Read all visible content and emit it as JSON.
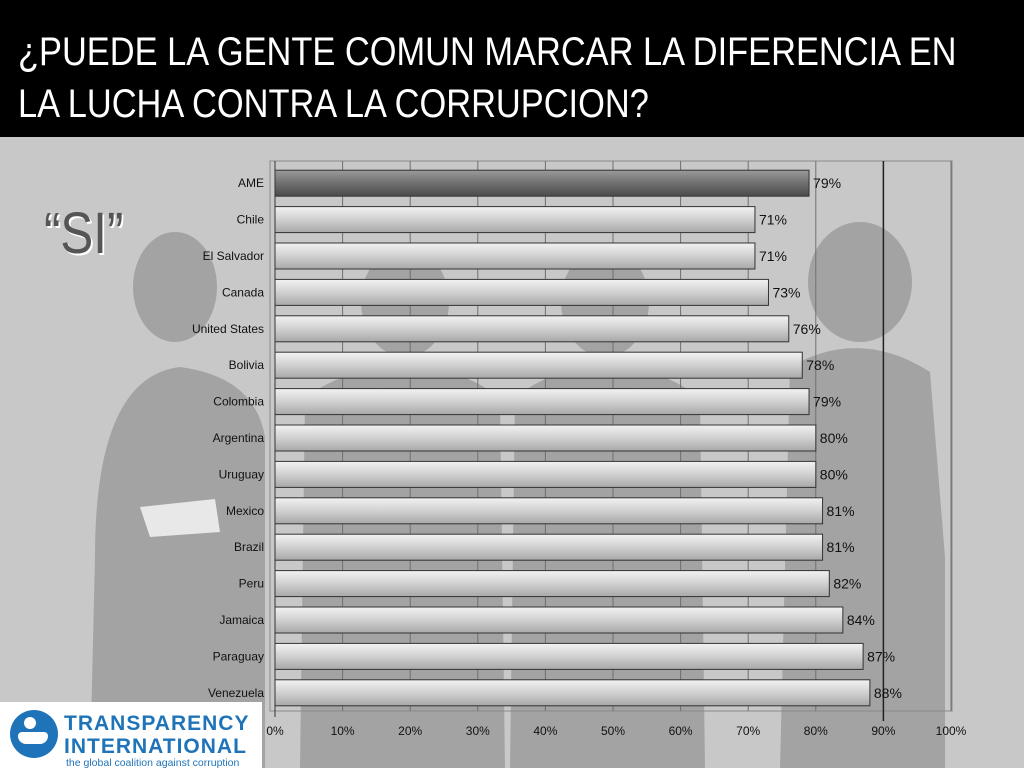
{
  "slide": {
    "title_line1": "¿PUEDE LA GENTE COMUN MARCAR LA DIFERENCIA EN",
    "title_line2": "LA LUCHA CONTRA LA CORRUPCION?",
    "answer_label": "“SI”"
  },
  "logo": {
    "name_line1": "TRANSPARENCY",
    "name_line2": "INTERNATIONAL",
    "tagline": "the global coalition against corruption"
  },
  "colors": {
    "header_bg": "#000000",
    "slide_bg": "#c8c8c8",
    "highlight_bar": "#707070",
    "normal_bar": "#d4d4d4",
    "logo_blue": "#1f74b9"
  },
  "chart_data": {
    "type": "bar",
    "orientation": "horizontal",
    "categories": [
      "AME",
      "Chile",
      "El Salvador",
      "Canada",
      "United States",
      "Bolivia",
      "Colombia",
      "Argentina",
      "Uruguay",
      "Mexico",
      "Brazil",
      "Peru",
      "Jamaica",
      "Paraguay",
      "Venezuela"
    ],
    "values": [
      79,
      71,
      71,
      73,
      76,
      78,
      79,
      80,
      80,
      81,
      81,
      82,
      84,
      87,
      88
    ],
    "value_labels": [
      "79%",
      "71%",
      "71%",
      "73%",
      "76%",
      "78%",
      "79%",
      "80%",
      "80%",
      "81%",
      "81%",
      "82%",
      "84%",
      "87%",
      "88%"
    ],
    "highlight_category": "AME",
    "xlim": [
      0,
      100
    ],
    "xticks": [
      "0%",
      "10%",
      "20%",
      "30%",
      "40%",
      "50%",
      "60%",
      "70%",
      "80%",
      "90%",
      "100%"
    ],
    "xlabel": "",
    "ylabel": "",
    "grid": true,
    "reference_line": 90
  }
}
